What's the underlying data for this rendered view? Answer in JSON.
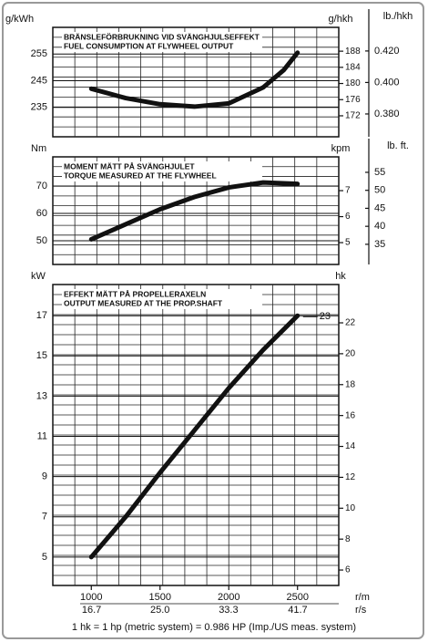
{
  "chart_data": [
    {
      "type": "line",
      "title": "BRÄNSLEFÖRBRUKNING VID SVÄNGHJULSEFFEKT",
      "subtitle": "FUEL CONSUMPTION AT FLYWHEEL OUTPUT",
      "ylabel": "g/kWh",
      "y2label": "g/hkh",
      "y3label": "lb./hkh",
      "x": [
        1000,
        1250,
        1500,
        1750,
        2000,
        2250,
        2400,
        2500
      ],
      "values": [
        242,
        238.5,
        236.2,
        235.3,
        236.5,
        242.5,
        249,
        255.5
      ],
      "color": "#111111",
      "xlim": [
        720,
        2800
      ],
      "ylim": [
        224,
        265
      ],
      "yticks": [
        235,
        245,
        255
      ],
      "y2lim": [
        166.8,
        193.9
      ],
      "y2ticks": [
        172,
        176,
        180,
        184,
        188
      ],
      "y3lim": [
        0.3655,
        0.435
      ],
      "y3ticks": [
        {
          "value": 0.38,
          "label": "0.380"
        },
        {
          "value": 0.4,
          "label": "0.400"
        },
        {
          "value": 0.42,
          "label": "0.420"
        }
      ],
      "grid": true
    },
    {
      "type": "line",
      "title": "MOMENT MÄTT PÅ SVÄNGHJULET",
      "subtitle": "TORQUE MEASURED AT THE FLYWHEEL",
      "ylabel": "Nm",
      "y2label": "kpm",
      "y3label": "lb. ft.",
      "x": [
        1000,
        1250,
        1500,
        1750,
        2000,
        2250,
        2500
      ],
      "values": [
        50.5,
        56,
        61.5,
        66,
        69.5,
        71.3,
        70.8
      ],
      "color": "#111111",
      "xlim": [
        720,
        2800
      ],
      "ylim": [
        41.3,
        80.7
      ],
      "yticks": [
        50,
        60,
        70
      ],
      "y2lim": [
        4.16,
        8.3
      ],
      "y2ticks": [
        5,
        6,
        7
      ],
      "y3lim": [
        29.4,
        59.3
      ],
      "y3ticks": [
        35,
        40,
        45,
        50,
        55
      ],
      "grid": true
    },
    {
      "type": "line",
      "title": "EFFEKT MÄTT PÅ PROPELLERAXELN",
      "subtitle": "OUTPUT MEASURED AT THE PROP.SHAFT",
      "ylabel": "kW",
      "y2label": "hk",
      "annotation": "23",
      "x": [
        1000,
        1250,
        1500,
        1750,
        2000,
        2250,
        2500
      ],
      "values": [
        5,
        7,
        9.2,
        11.3,
        13.4,
        15.3,
        17
      ],
      "color": "#111111",
      "xlim": [
        720,
        2800
      ],
      "xticks": [
        1000,
        1500,
        2000,
        2500
      ],
      "xlabel": "r/m",
      "x2lim": [
        12,
        46.67
      ],
      "x2ticks": [
        16.7,
        {
          "value": 25,
          "label": "25.0"
        },
        33.3,
        41.7
      ],
      "x2label": "r/s",
      "ylim": [
        3.59,
        18.55
      ],
      "yticks": [
        5,
        7,
        9,
        11,
        13,
        15,
        17
      ],
      "y2lim": [
        5.0,
        24.48
      ],
      "y2ticks": [
        6,
        8,
        10,
        12,
        14,
        16,
        18,
        20,
        22
      ],
      "grid": true
    }
  ],
  "footnote": "1 hk = 1 hp (metric system) = 0.986 HP (Imp./US meas. system)"
}
